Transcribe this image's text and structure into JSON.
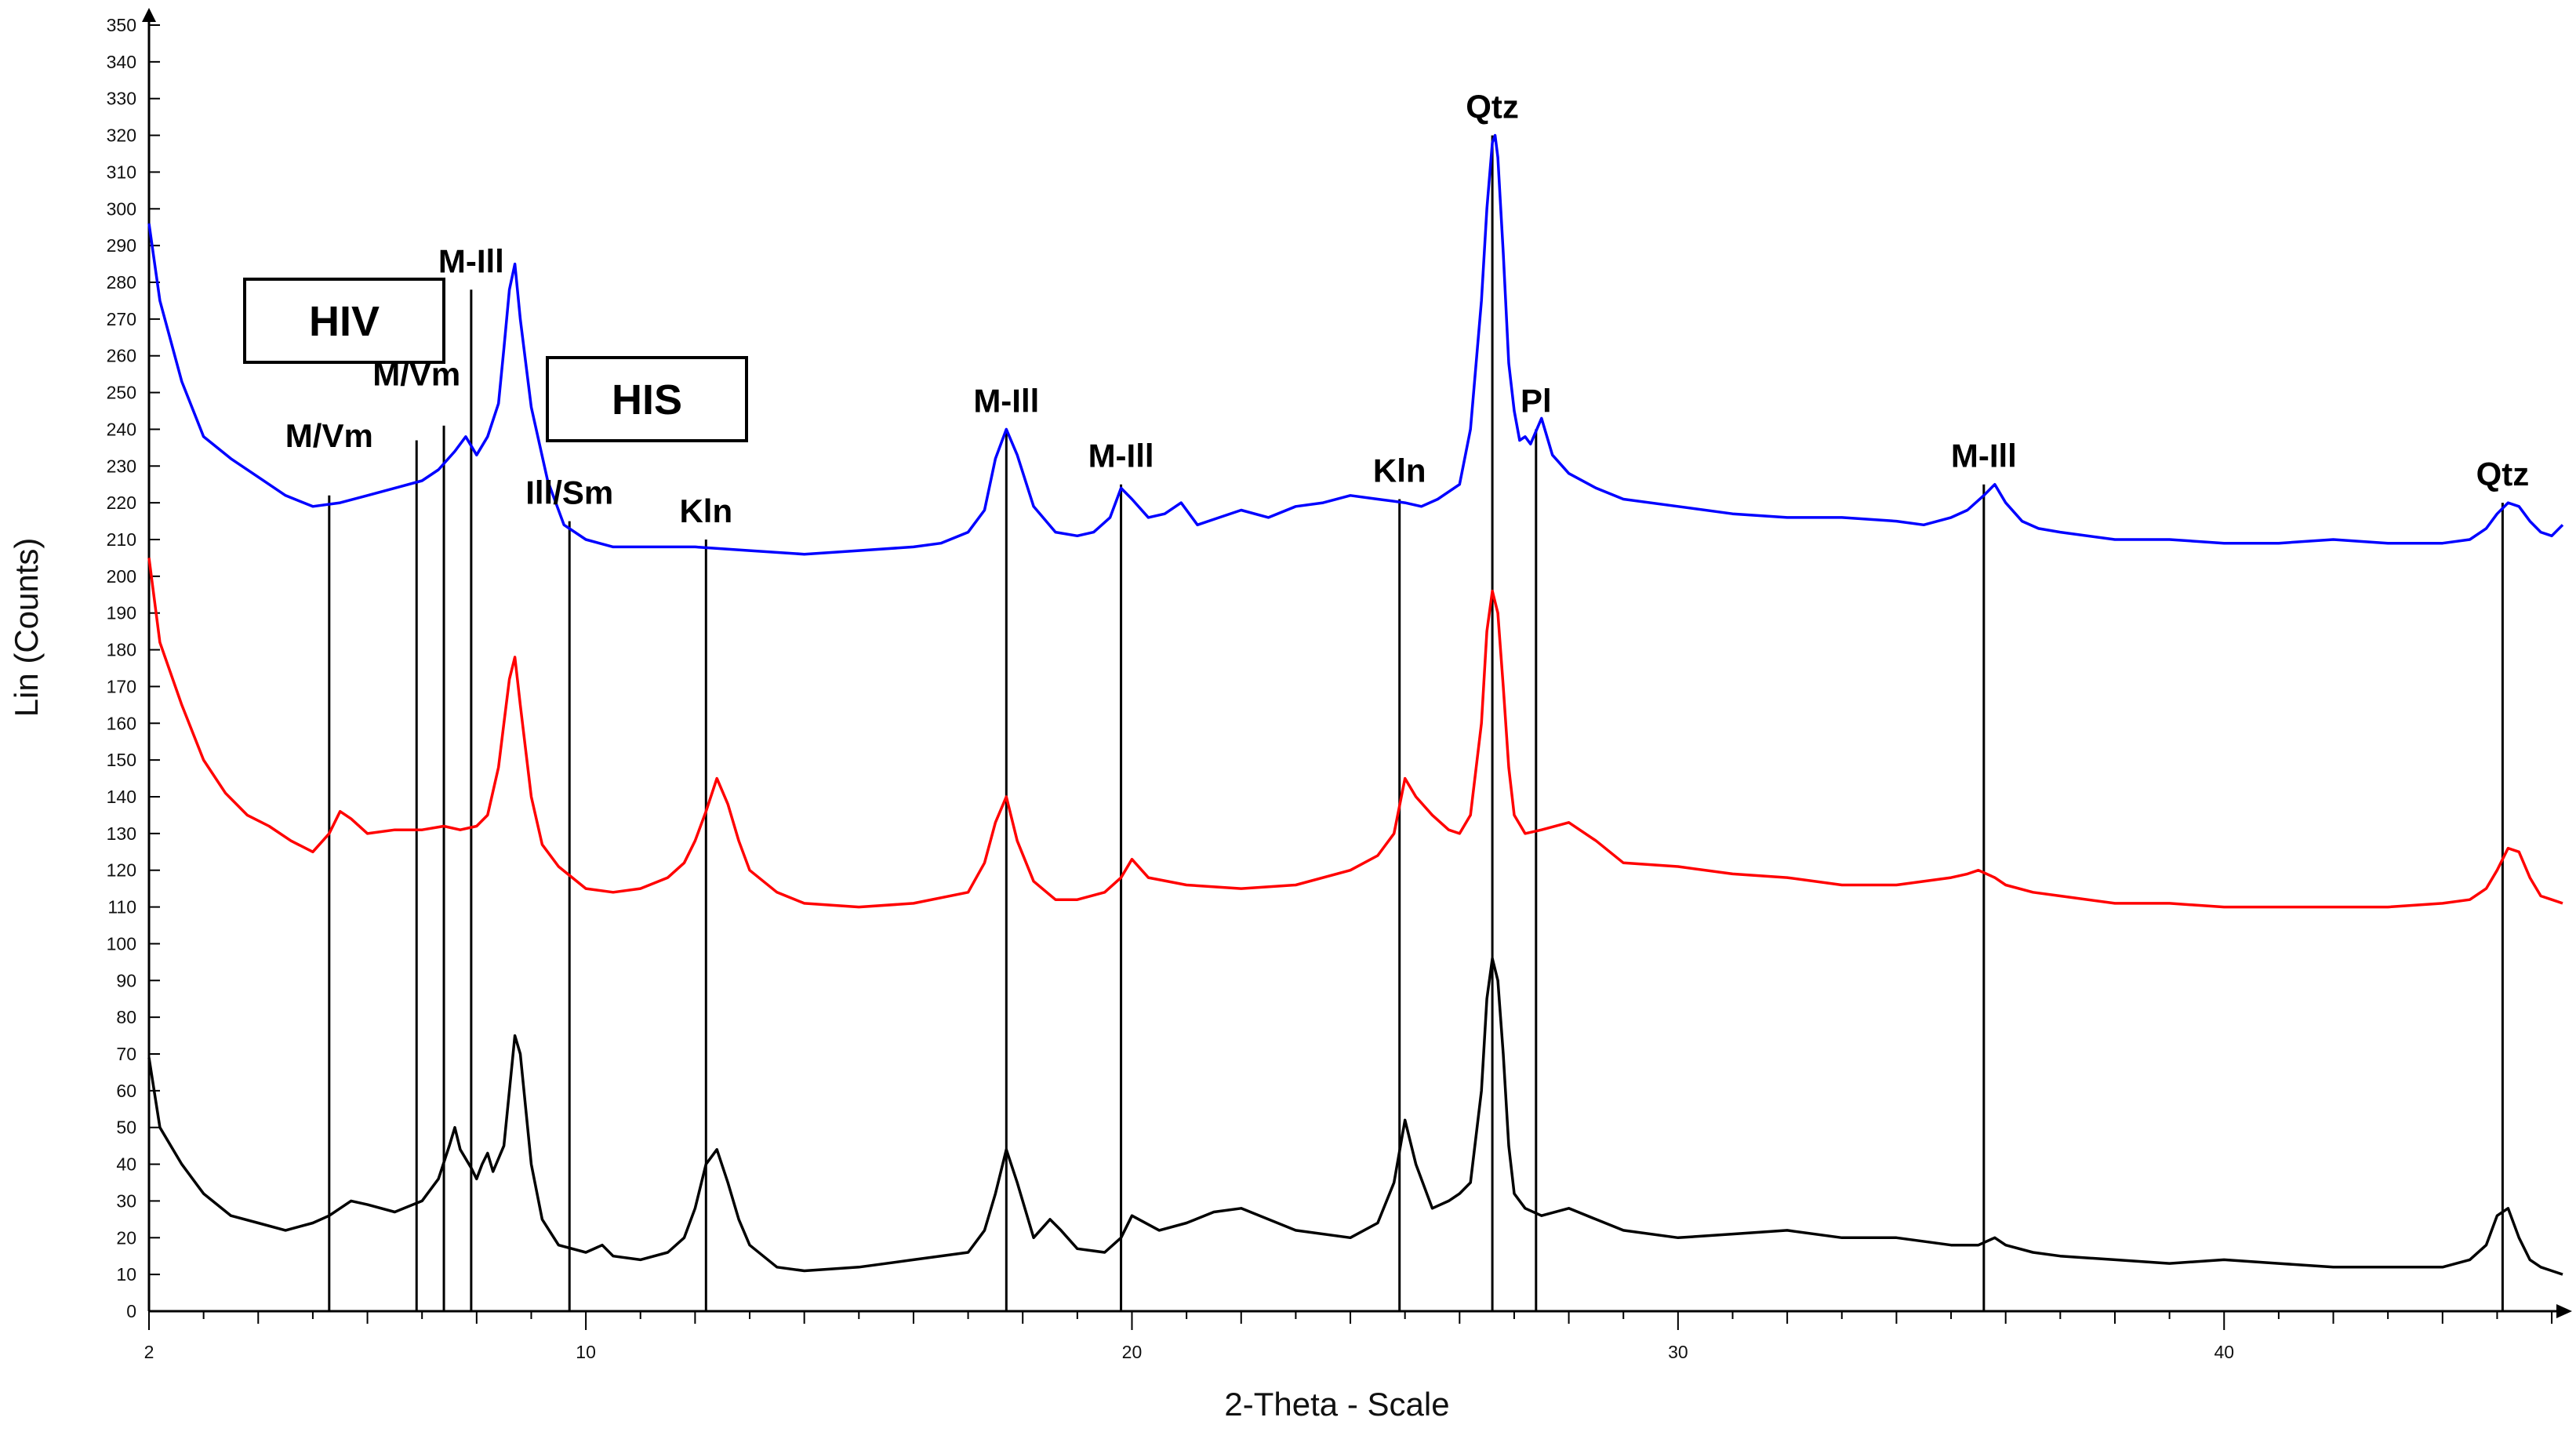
{
  "chart_data": {
    "type": "line",
    "title": "",
    "xlabel": "2-Theta - Scale",
    "ylabel": "Lin (Counts)",
    "xlim": [
      2,
      46.2
    ],
    "ylim": [
      0,
      350
    ],
    "x_ticks": [
      2,
      10,
      20,
      30,
      40
    ],
    "y_ticks": [
      0,
      10,
      20,
      30,
      40,
      50,
      60,
      70,
      80,
      90,
      100,
      110,
      120,
      130,
      140,
      150,
      160,
      170,
      180,
      190,
      200,
      210,
      220,
      230,
      240,
      250,
      260,
      270,
      280,
      290,
      300,
      310,
      320,
      330,
      340,
      350
    ],
    "grid": false,
    "legend": "none",
    "colors": {
      "blue": "#0000ff",
      "red": "#ff0000",
      "black": "#000000"
    },
    "series": [
      {
        "color": "#0000ff",
        "x": [
          2.0,
          2.2,
          2.6,
          3.0,
          3.5,
          4.0,
          4.5,
          5.0,
          5.5,
          6.0,
          6.5,
          7.0,
          7.3,
          7.6,
          7.8,
          8.0,
          8.2,
          8.4,
          8.5,
          8.6,
          8.7,
          8.8,
          9.0,
          9.3,
          9.6,
          10.0,
          10.5,
          11.0,
          12.0,
          13.0,
          14.0,
          15.0,
          16.0,
          16.5,
          17.0,
          17.3,
          17.5,
          17.7,
          17.9,
          18.2,
          18.6,
          19.0,
          19.3,
          19.6,
          19.8,
          20.0,
          20.3,
          20.6,
          20.9,
          21.2,
          21.6,
          22.0,
          22.5,
          23.0,
          23.5,
          24.0,
          24.5,
          25.0,
          25.3,
          25.6,
          26.0,
          26.2,
          26.4,
          26.5,
          26.6,
          26.65,
          26.7,
          26.8,
          26.9,
          27.0,
          27.1,
          27.2,
          27.3,
          27.5,
          27.7,
          28.0,
          28.5,
          29.0,
          30.0,
          31.0,
          32.0,
          33.0,
          34.0,
          34.5,
          35.0,
          35.3,
          35.6,
          35.8,
          36.0,
          36.3,
          36.6,
          37.0,
          38.0,
          39.0,
          40.0,
          41.0,
          42.0,
          43.0,
          44.0,
          44.5,
          44.8,
          45.0,
          45.2,
          45.4,
          45.6,
          45.8,
          46.0,
          46.2
        ],
        "y": [
          296,
          275,
          253,
          238,
          232,
          227,
          222,
          219,
          220,
          222,
          224,
          226,
          229,
          234,
          238,
          233,
          238,
          247,
          262,
          278,
          285,
          270,
          246,
          226,
          214,
          210,
          208,
          208,
          208,
          207,
          206,
          207,
          208,
          209,
          212,
          218,
          232,
          240,
          233,
          219,
          212,
          211,
          212,
          216,
          224,
          221,
          216,
          217,
          220,
          214,
          216,
          218,
          216,
          219,
          220,
          222,
          221,
          220,
          219,
          221,
          225,
          240,
          275,
          300,
          318,
          320,
          314,
          288,
          258,
          245,
          237,
          238,
          236,
          243,
          233,
          228,
          224,
          221,
          219,
          217,
          216,
          216,
          215,
          214,
          216,
          218,
          222,
          225,
          220,
          215,
          213,
          212,
          210,
          210,
          209,
          209,
          210,
          209,
          209,
          210,
          213,
          217,
          220,
          219,
          215,
          212,
          211,
          214
        ]
      },
      {
        "color": "#ff0000",
        "x": [
          2.0,
          2.2,
          2.6,
          3.0,
          3.4,
          3.8,
          4.2,
          4.6,
          5.0,
          5.3,
          5.5,
          5.7,
          6.0,
          6.5,
          7.0,
          7.4,
          7.7,
          8.0,
          8.2,
          8.4,
          8.5,
          8.6,
          8.7,
          8.8,
          9.0,
          9.2,
          9.5,
          10.0,
          10.5,
          11.0,
          11.5,
          11.8,
          12.0,
          12.2,
          12.4,
          12.6,
          12.8,
          13.0,
          13.5,
          14.0,
          15.0,
          16.0,
          17.0,
          17.3,
          17.5,
          17.7,
          17.9,
          18.2,
          18.6,
          19.0,
          19.5,
          19.8,
          20.0,
          20.3,
          21.0,
          22.0,
          23.0,
          24.0,
          24.5,
          24.8,
          25.0,
          25.2,
          25.5,
          25.8,
          26.0,
          26.2,
          26.4,
          26.5,
          26.6,
          26.7,
          26.8,
          26.9,
          27.0,
          27.2,
          27.5,
          28.0,
          28.5,
          29.0,
          30.0,
          31.0,
          32.0,
          33.0,
          34.0,
          35.0,
          35.3,
          35.5,
          35.8,
          36.0,
          36.5,
          37.0,
          38.0,
          39.0,
          40.0,
          41.0,
          42.0,
          43.0,
          44.0,
          44.5,
          44.8,
          45.0,
          45.2,
          45.4,
          45.6,
          45.8,
          46.0,
          46.2
        ],
        "y": [
          205,
          182,
          165,
          150,
          141,
          135,
          132,
          128,
          125,
          130,
          136,
          134,
          130,
          131,
          131,
          132,
          131,
          132,
          135,
          148,
          160,
          172,
          178,
          165,
          140,
          127,
          121,
          115,
          114,
          115,
          118,
          122,
          128,
          136,
          145,
          138,
          128,
          120,
          114,
          111,
          110,
          111,
          114,
          122,
          133,
          140,
          128,
          117,
          112,
          112,
          114,
          118,
          123,
          118,
          116,
          115,
          116,
          120,
          124,
          130,
          145,
          140,
          135,
          131,
          130,
          135,
          160,
          185,
          196,
          190,
          170,
          148,
          135,
          130,
          131,
          133,
          128,
          122,
          121,
          119,
          118,
          116,
          116,
          118,
          119,
          120,
          118,
          116,
          114,
          113,
          111,
          111,
          110,
          110,
          110,
          110,
          111,
          112,
          115,
          120,
          126,
          125,
          118,
          113,
          112,
          111
        ]
      },
      {
        "color": "#000000",
        "x": [
          2.0,
          2.2,
          2.6,
          3.0,
          3.5,
          4.0,
          4.5,
          5.0,
          5.3,
          5.5,
          5.7,
          6.0,
          6.5,
          7.0,
          7.3,
          7.5,
          7.6,
          7.7,
          7.9,
          8.0,
          8.1,
          8.2,
          8.3,
          8.5,
          8.6,
          8.7,
          8.8,
          9.0,
          9.2,
          9.5,
          10.0,
          10.3,
          10.5,
          11.0,
          11.5,
          11.8,
          12.0,
          12.2,
          12.4,
          12.6,
          12.8,
          13.0,
          13.5,
          14.0,
          15.0,
          16.0,
          17.0,
          17.3,
          17.5,
          17.7,
          17.9,
          18.2,
          18.5,
          18.7,
          19.0,
          19.5,
          19.8,
          20.0,
          20.5,
          21.0,
          21.5,
          22.0,
          23.0,
          24.0,
          24.5,
          24.8,
          25.0,
          25.2,
          25.5,
          25.8,
          26.0,
          26.2,
          26.4,
          26.5,
          26.6,
          26.7,
          26.8,
          26.9,
          27.0,
          27.2,
          27.5,
          28.0,
          28.5,
          29.0,
          30.0,
          31.0,
          32.0,
          33.0,
          34.0,
          35.0,
          35.5,
          35.8,
          36.0,
          36.5,
          37.0,
          38.0,
          39.0,
          40.0,
          41.0,
          42.0,
          43.0,
          44.0,
          44.5,
          44.8,
          45.0,
          45.2,
          45.4,
          45.6,
          45.8,
          46.0,
          46.2
        ],
        "y": [
          69,
          50,
          40,
          32,
          26,
          24,
          22,
          24,
          26,
          28,
          30,
          29,
          27,
          30,
          36,
          45,
          50,
          44,
          39,
          36,
          40,
          43,
          38,
          45,
          60,
          75,
          70,
          40,
          25,
          18,
          16,
          18,
          15,
          14,
          16,
          20,
          28,
          40,
          44,
          35,
          25,
          18,
          12,
          11,
          12,
          14,
          16,
          22,
          32,
          44,
          35,
          20,
          25,
          22,
          17,
          16,
          20,
          26,
          22,
          24,
          27,
          28,
          22,
          20,
          24,
          35,
          52,
          40,
          28,
          30,
          32,
          35,
          60,
          85,
          96,
          90,
          70,
          45,
          32,
          28,
          26,
          28,
          25,
          22,
          20,
          21,
          22,
          20,
          20,
          18,
          18,
          20,
          18,
          16,
          15,
          14,
          13,
          14,
          13,
          12,
          12,
          12,
          14,
          18,
          26,
          28,
          20,
          14,
          12,
          11,
          10
        ]
      }
    ],
    "peak_markers": [
      {
        "x": 5.3,
        "y_top": 222,
        "label": "M/Vm",
        "label_line": 1
      },
      {
        "x": 6.9,
        "y_top": 237,
        "label": "M/Vm",
        "label_line": 0
      },
      {
        "x": 7.4,
        "y_top": 241,
        "label": ""
      },
      {
        "x": 7.9,
        "y_top": 278,
        "label": "M-Ill"
      },
      {
        "x": 9.7,
        "y_top": 215,
        "label": "Ill/Sm"
      },
      {
        "x": 12.2,
        "y_top": 210,
        "label": "Kln"
      },
      {
        "x": 17.7,
        "y_top": 240,
        "label": "M-Ill"
      },
      {
        "x": 19.8,
        "y_top": 225,
        "label": "M-Ill"
      },
      {
        "x": 24.9,
        "y_top": 221,
        "label": "Kln"
      },
      {
        "x": 26.6,
        "y_top": 320,
        "label": "Qtz"
      },
      {
        "x": 27.4,
        "y_top": 240,
        "label": "Pl"
      },
      {
        "x": 35.6,
        "y_top": 225,
        "label": "M-Ill"
      },
      {
        "x": 45.1,
        "y_top": 220,
        "label": "Qtz"
      }
    ],
    "annotations": [
      {
        "text": "HIV"
      },
      {
        "text": "HIS"
      }
    ]
  }
}
